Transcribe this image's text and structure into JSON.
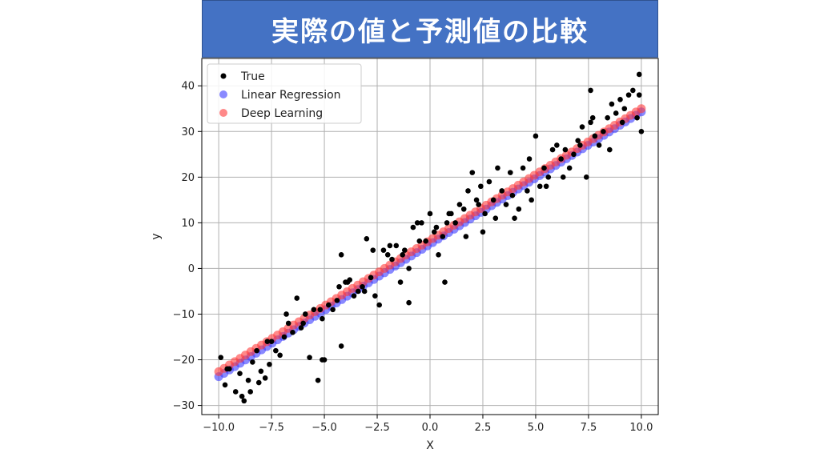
{
  "title": "実際の値と予測値の比較",
  "colors": {
    "banner": "#4472c4",
    "true": "#000000",
    "linear": "#3b3bff",
    "deep": "#ff3b3b"
  },
  "chart_data": {
    "type": "scatter",
    "xlabel": "X",
    "ylabel": "y",
    "xlim": [
      -10.8,
      10.8
    ],
    "ylim": [
      -32,
      46
    ],
    "xticks": [
      -10,
      -7.5,
      -5,
      -2.5,
      0,
      2.5,
      5,
      7.5,
      10
    ],
    "xtick_labels": [
      "−10.0",
      "−7.5",
      "−5.0",
      "−2.5",
      "0.0",
      "2.5",
      "5.0",
      "7.5",
      "10.0"
    ],
    "yticks": [
      -30,
      -20,
      -10,
      0,
      10,
      20,
      30,
      40
    ],
    "ytick_labels": [
      "−30",
      "−20",
      "−10",
      "0",
      "10",
      "20",
      "30",
      "40"
    ],
    "grid": true,
    "legend_position": "top-left",
    "series": [
      {
        "name": "True",
        "color": "#000000",
        "x": [
          -9.9,
          -9.7,
          -9.5,
          -9.2,
          -9.0,
          -8.8,
          -8.6,
          -8.4,
          -8.2,
          -8.0,
          -7.8,
          -7.6,
          -7.5,
          -7.3,
          -7.1,
          -6.9,
          -6.7,
          -6.5,
          -6.3,
          -6.1,
          -5.9,
          -5.7,
          -5.5,
          -5.3,
          -5.1,
          -5.0,
          -4.8,
          -4.6,
          -4.4,
          -4.2,
          -4.0,
          -3.8,
          -3.6,
          -3.4,
          -3.2,
          -3.0,
          -2.8,
          -2.6,
          -2.4,
          -2.2,
          -2.0,
          -1.8,
          -1.6,
          -1.4,
          -1.2,
          -1.0,
          -0.8,
          -0.6,
          -0.4,
          -0.2,
          0.0,
          0.2,
          0.4,
          0.6,
          0.8,
          1.0,
          1.2,
          1.4,
          1.6,
          1.8,
          2.0,
          2.2,
          2.4,
          2.6,
          2.8,
          3.0,
          3.2,
          3.4,
          3.6,
          3.8,
          4.0,
          4.2,
          4.4,
          4.6,
          4.8,
          5.0,
          5.2,
          5.4,
          5.6,
          5.8,
          6.0,
          6.2,
          6.4,
          6.6,
          6.8,
          7.0,
          7.2,
          7.4,
          7.6,
          7.8,
          8.0,
          8.2,
          8.4,
          8.6,
          8.8,
          9.0,
          9.2,
          9.4,
          9.6,
          9.8,
          10.0,
          -9.6,
          -8.9,
          -8.1,
          -7.7,
          -6.8,
          -6.0,
          -5.2,
          -4.3,
          -3.9,
          -3.1,
          -2.7,
          -1.9,
          -1.3,
          -0.5,
          0.3,
          0.9,
          1.7,
          2.3,
          3.1,
          3.9,
          4.7,
          5.5,
          6.3,
          7.1,
          7.7,
          8.5,
          9.1,
          9.9,
          -4.2,
          -5.1,
          -8.5,
          -1.0,
          0.7,
          2.5,
          7.6,
          9.9
        ],
        "y": [
          -19.5,
          -25.5,
          -22,
          -27,
          -23,
          -29,
          -24.5,
          -20.5,
          -18,
          -22.5,
          -24,
          -21,
          -16,
          -18,
          -19,
          -15,
          -12,
          -14,
          -6.5,
          -13,
          -10,
          -19.5,
          -9,
          -24.5,
          -11,
          -20,
          -8,
          -9,
          -7,
          3,
          -3,
          -2.5,
          -6,
          -5,
          -4,
          6.5,
          -2,
          -6,
          -8,
          4,
          3,
          2,
          5,
          -3,
          4,
          -7.5,
          9,
          10,
          10,
          6,
          12,
          8,
          3,
          7,
          10,
          12,
          10,
          14,
          13,
          17,
          21,
          15,
          18,
          12,
          19,
          15,
          22,
          17,
          14,
          21,
          11,
          13,
          22,
          17,
          15,
          29,
          18,
          22,
          20,
          26,
          27,
          24,
          26,
          22,
          25,
          28,
          31,
          20,
          39,
          29,
          27,
          30,
          33,
          36,
          34,
          37,
          35,
          38,
          39,
          33,
          30,
          -22,
          -28,
          -25,
          -16,
          -10,
          -12,
          -9,
          -4,
          -3,
          -5,
          4,
          5,
          3,
          6,
          9,
          12,
          7,
          14,
          11,
          16,
          24,
          18,
          20,
          27,
          33,
          26,
          32,
          42.5,
          -17,
          -20,
          -27,
          0,
          -3,
          8,
          32,
          38
        ]
      },
      {
        "name": "Linear Regression",
        "color": "#3b3bff",
        "slope": 2.9,
        "intercept": 5.3,
        "x_start": -10,
        "x_end": 10,
        "n": 80
      },
      {
        "name": "Deep Learning",
        "color": "#ff3b3b",
        "slope": 2.88,
        "intercept": 6.2,
        "x_start": -10,
        "x_end": 10,
        "n": 80
      }
    ]
  }
}
